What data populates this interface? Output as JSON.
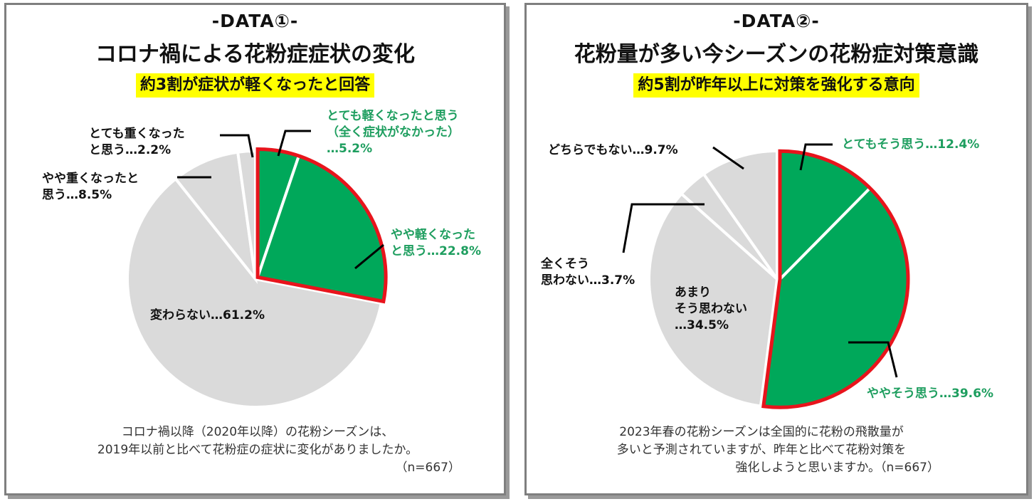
{
  "chart_data": [
    {
      "type": "pie",
      "tag": "-DATA①-",
      "title": "コロナ禍による花粉症症状の変化",
      "subtitle": "約3割が症状が軽くなったと回答",
      "note_lines": [
        "コロナ禍以降（2020年以降）の花粉シーズンは、",
        "2019年以前と比べて花粉症の症状に変化がありましたか。",
        "（n=667）"
      ],
      "highlight": "red-outline on first two slices",
      "slices": [
        {
          "label_lines": [
            "とても軽くなったと思う",
            "（全く症状がなかった）",
            "…5.2%"
          ],
          "value": 5.2,
          "color": "#00a85a"
        },
        {
          "label_lines": [
            "やや軽くなった",
            "と思う…22.8%"
          ],
          "value": 22.8,
          "color": "#00a85a"
        },
        {
          "label_lines": [
            "変わらない…61.2%"
          ],
          "value": 61.2,
          "color": "#dadada"
        },
        {
          "label_lines": [
            "やや重くなったと",
            "思う…8.5%"
          ],
          "value": 8.5,
          "color": "#dadada"
        },
        {
          "label_lines": [
            "とても重くなった",
            "と思う…2.2%"
          ],
          "value": 2.2,
          "color": "#dadada"
        }
      ]
    },
    {
      "type": "pie",
      "tag": "-DATA②-",
      "title": "花粉量が多い今シーズンの花粉症対策意識",
      "subtitle": "約5割が昨年以上に対策を強化する意向",
      "note_lines": [
        "2023年春の花粉シーズンは全国的に花粉の飛散量が",
        "多いと予測されていますが、昨年と比べて花粉対策を",
        "強化しようと思いますか。（n=667）"
      ],
      "highlight": "red-outline on first two slices",
      "slices": [
        {
          "label_lines": [
            "とてもそう思う…12.4%"
          ],
          "value": 12.4,
          "color": "#00a85a"
        },
        {
          "label_lines": [
            "ややそう思う…39.6%"
          ],
          "value": 39.6,
          "color": "#00a85a"
        },
        {
          "label_lines": [
            "あまり",
            "そう思わない",
            "…34.5%"
          ],
          "value": 34.5,
          "color": "#dadada"
        },
        {
          "label_lines": [
            "全くそう",
            "思わない…3.7%"
          ],
          "value": 3.7,
          "color": "#dadada"
        },
        {
          "label_lines": [
            "どちらでもない…9.7%"
          ],
          "value": 9.7,
          "color": "#dadada"
        }
      ]
    }
  ]
}
